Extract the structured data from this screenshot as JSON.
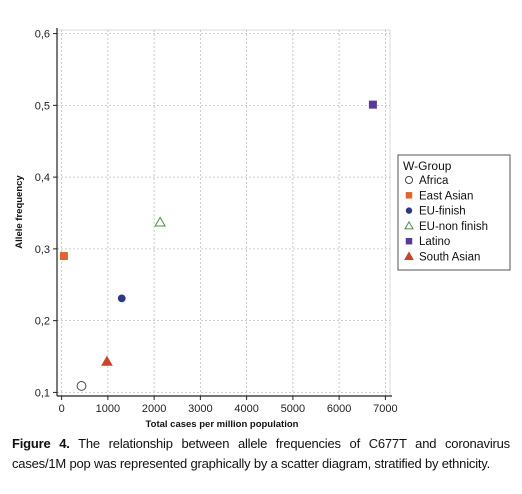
{
  "chart_data": {
    "type": "scatter",
    "xlabel": "Total cases per million population",
    "ylabel": "Allele frequency",
    "xlim": [
      -100,
      7100
    ],
    "ylim": [
      0.095,
      0.605
    ],
    "x_ticks": [
      0,
      1000,
      2000,
      3000,
      4000,
      5000,
      6000,
      7000
    ],
    "y_ticks": [
      0.1,
      0.2,
      0.3,
      0.4,
      0.5,
      0.6
    ],
    "x_tick_labels": [
      "0",
      "1000",
      "2000",
      "3000",
      "4000",
      "5000",
      "6000",
      "7000"
    ],
    "y_tick_labels": [
      "0,1",
      "0,2",
      "0,3",
      "0,4",
      "0,5",
      "0,6"
    ],
    "grid": true,
    "legend_placement": "right",
    "legend_title": "W-Group",
    "series": [
      {
        "name": "Africa",
        "marker": "circle-open",
        "color": "#4a4a4a",
        "points": [
          {
            "x": 430,
            "y": 0.109
          }
        ]
      },
      {
        "name": "East Asian",
        "marker": "square",
        "color": "#e0662e",
        "points": [
          {
            "x": 50,
            "y": 0.29
          }
        ]
      },
      {
        "name": "EU-finish",
        "marker": "circle",
        "color": "#2d3a80",
        "points": [
          {
            "x": 1300,
            "y": 0.231
          }
        ]
      },
      {
        "name": "EU-non finish",
        "marker": "triangle-open",
        "color": "#4f8a4f",
        "points": [
          {
            "x": 2130,
            "y": 0.337
          }
        ]
      },
      {
        "name": "Latino",
        "marker": "square",
        "color": "#5a3a94",
        "points": [
          {
            "x": 6730,
            "y": 0.501
          }
        ]
      },
      {
        "name": "South Asian",
        "marker": "triangle",
        "color": "#c8452a",
        "points": [
          {
            "x": 980,
            "y": 0.143
          }
        ]
      }
    ]
  },
  "caption": {
    "label": "Figure 4.",
    "text": " The relationship between allele frequencies of C677T and coronavirus cases/1M pop was represented graphically by a scatter diagram, stratified by ethnicity."
  }
}
